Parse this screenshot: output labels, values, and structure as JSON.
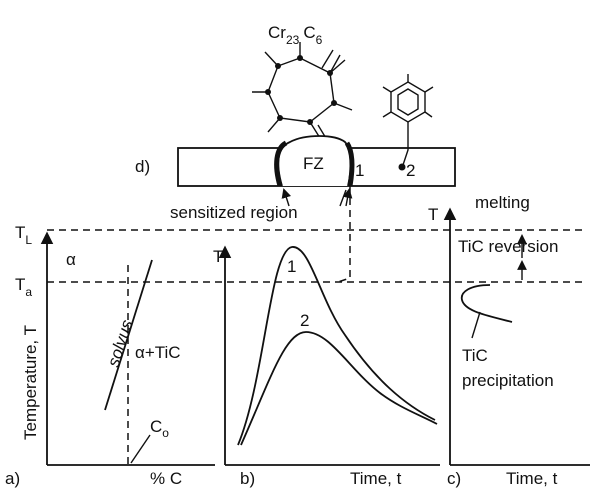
{
  "weld_schematic": {
    "label": "d)",
    "compound": {
      "base1": "Cr",
      "sub1": "23",
      "base2": "C",
      "sub2": "6"
    },
    "fusion_zone": "FZ",
    "point_1": "1",
    "point_2": "2",
    "sensitized_label": "sensitized region"
  },
  "panel_a": {
    "label": "a)",
    "y_axis_title": "Temperature, T",
    "x_axis_title": "% C",
    "T_L": {
      "base": "T",
      "sub": "L"
    },
    "T_a": {
      "base": "T",
      "sub": "a"
    },
    "alpha_region": "α",
    "solvus": "solvus",
    "two_phase_region": "α+TiC",
    "C_o": {
      "base": "C",
      "sub": "o"
    }
  },
  "panel_b": {
    "label": "b)",
    "y_axis_title": "T",
    "x_axis_title": "Time, t",
    "curve_1": "1",
    "curve_2": "2"
  },
  "panel_c": {
    "label": "c)",
    "y_axis_title": "T",
    "x_axis_title": "Time, t",
    "melting": "melting",
    "reversion": "TiC reversion",
    "precipitation": [
      "TiC",
      "precipitation"
    ]
  }
}
